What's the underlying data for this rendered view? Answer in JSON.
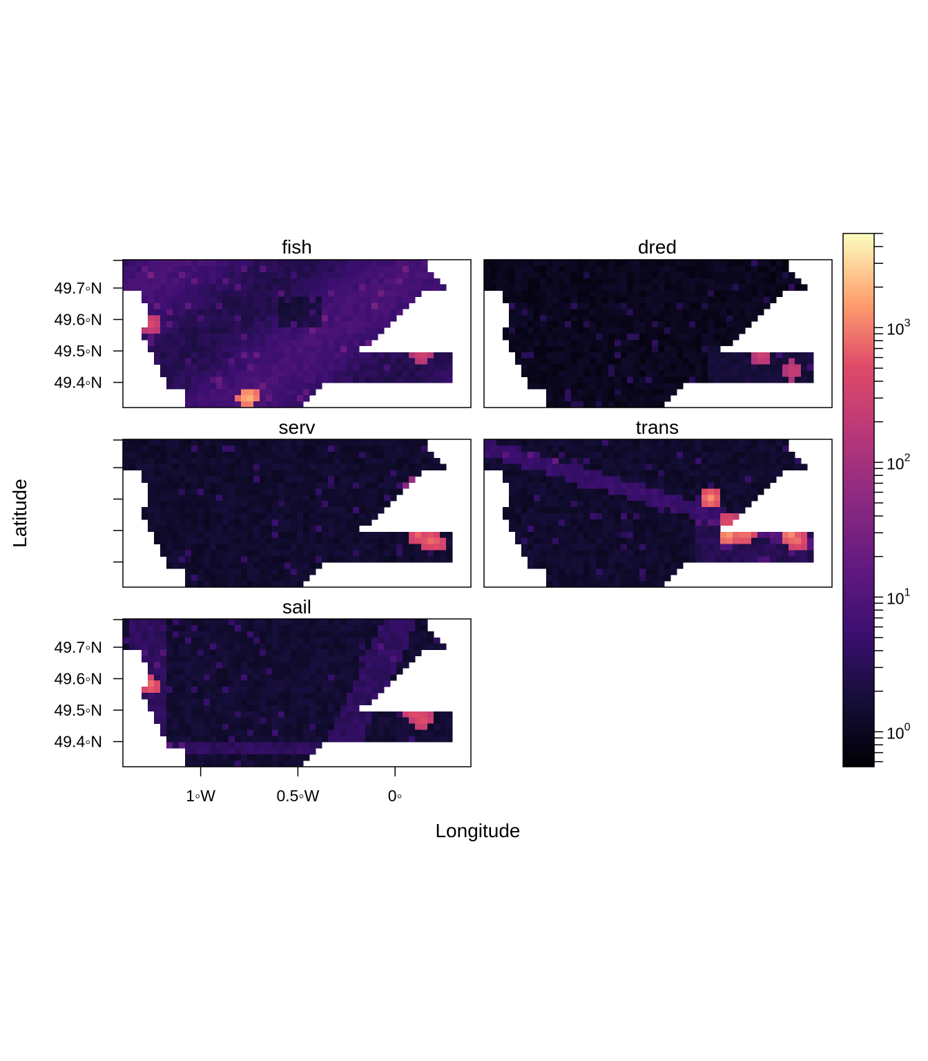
{
  "chart_data": {
    "type": "heatmap",
    "xlabel": "Longitude",
    "ylabel": "Latitude",
    "panels": [
      {
        "name": "fish"
      },
      {
        "name": "dred"
      },
      {
        "name": "serv"
      },
      {
        "name": "trans"
      },
      {
        "name": "sail"
      }
    ],
    "x_range": [
      -1.4,
      0.39
    ],
    "y_range": [
      49.32,
      49.79
    ],
    "x_ticks": [
      {
        "value": -1.0,
        "label": "1◦W"
      },
      {
        "value": -0.5,
        "label": "0.5◦W"
      },
      {
        "value": 0.0,
        "label": "0◦"
      }
    ],
    "y_ticks": [
      {
        "value": 49.4,
        "label": "49.4◦N"
      },
      {
        "value": 49.5,
        "label": "49.5◦N"
      },
      {
        "value": 49.6,
        "label": "49.6◦N"
      },
      {
        "value": 49.7,
        "label": "49.7◦N"
      }
    ],
    "colorbar": {
      "scale": "log",
      "range": [
        0.55,
        5000
      ],
      "palette": "magma",
      "ticks": [
        {
          "value": 1,
          "base": "10",
          "exp": "0"
        },
        {
          "value": 10,
          "base": "10",
          "exp": "1"
        },
        {
          "value": 100,
          "base": "10",
          "exp": "2"
        },
        {
          "value": 1000,
          "base": "10",
          "exp": "3"
        }
      ]
    }
  }
}
